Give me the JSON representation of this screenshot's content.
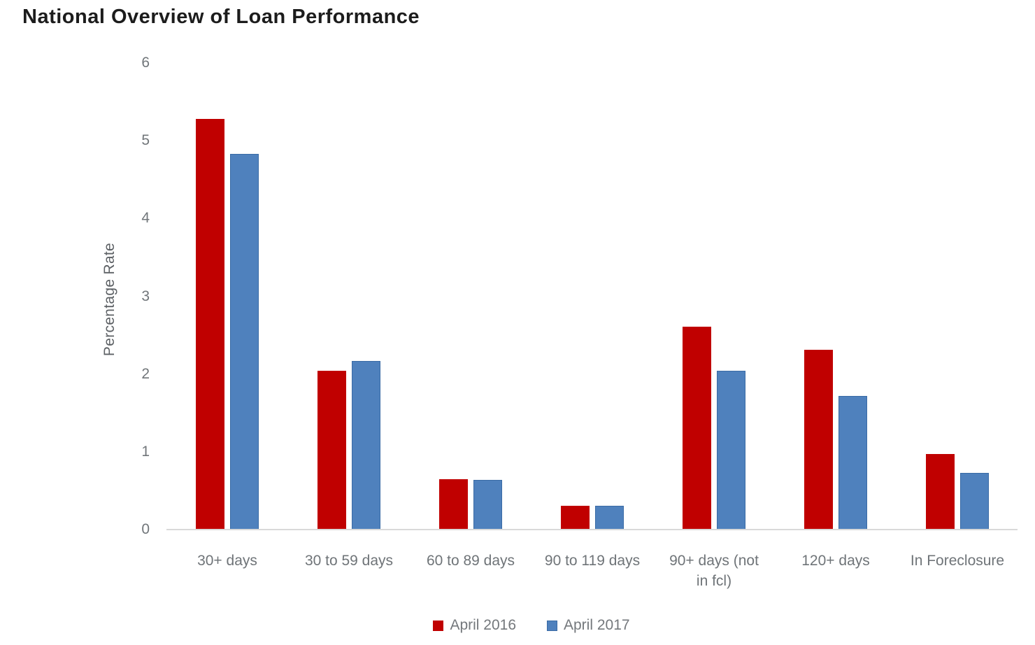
{
  "chart_data": {
    "type": "bar",
    "title": "National Overview of Loan Performance",
    "ylabel": "Percentage Rate",
    "xlabel": "",
    "ylim": [
      0,
      6
    ],
    "yticks": [
      0,
      1,
      2,
      3,
      4,
      5,
      6
    ],
    "grid": false,
    "plot_background": "#ffffff",
    "axis_line_color": "#d9d9d9",
    "legend_position": "bottom",
    "categories": [
      "30+ days",
      "30 to 59 days",
      "60 to 89 days",
      "90 to 119 days",
      "90+ days (not\nin fcl)",
      "120+ days",
      "In Foreclosure"
    ],
    "series": [
      {
        "name": "April 2016",
        "color": "#c00000",
        "border_color": "#c00000",
        "values": [
          5.28,
          2.04,
          0.65,
          0.31,
          2.61,
          2.31,
          0.97
        ]
      },
      {
        "name": "April 2017",
        "color": "#4f81bd",
        "border_color": "#3a6ba5",
        "values": [
          4.83,
          2.17,
          0.64,
          0.31,
          2.04,
          1.72,
          0.73
        ]
      }
    ]
  }
}
